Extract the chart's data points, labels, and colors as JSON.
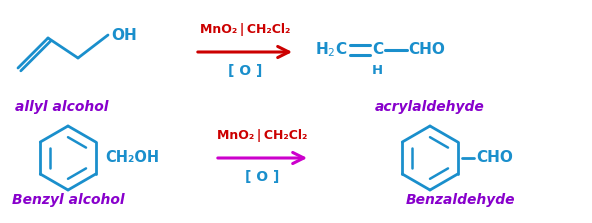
{
  "bg_color": "#ffffff",
  "blue": "#1a8fcc",
  "purple": "#8800cc",
  "red": "#cc0000",
  "magenta": "#cc00cc",
  "fig_width": 5.92,
  "fig_height": 2.23,
  "reaction1_label_above": "MnO₂ | CH₂Cl₂",
  "reaction1_label_below": "[ O ]",
  "reaction2_label_above": "MnO₂ | CH₂Cl₂",
  "reaction2_label_below": "[ O ]",
  "name1_reactant": "allyl alcohol",
  "name1_product": "acrylaldehyde",
  "name2_reactant": "Benzyl alcohol",
  "name2_product": "Benzaldehyde"
}
